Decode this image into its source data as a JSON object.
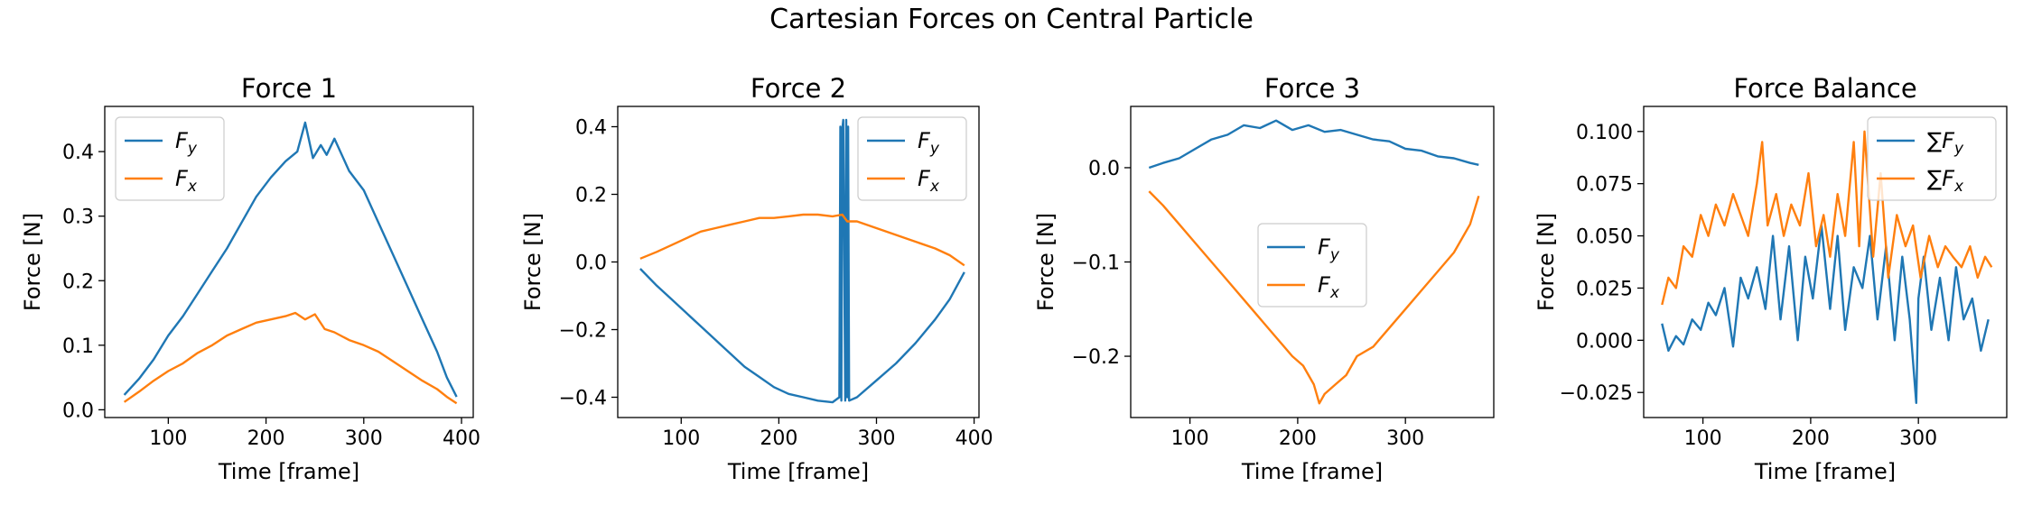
{
  "figure": {
    "suptitle": "Cartesian Forces on Central Particle"
  },
  "colors": {
    "fy": "#1f77b4",
    "fx": "#ff7f0e"
  },
  "chart_data": [
    {
      "type": "line",
      "title": "Force 1",
      "xlabel": "Time [frame]",
      "ylabel": "Force [N]",
      "xlim": [
        35,
        412
      ],
      "ylim": [
        -0.012,
        0.47
      ],
      "xticks": [
        100,
        200,
        300,
        400
      ],
      "yticks": [
        0.0,
        0.1,
        0.2,
        0.3,
        0.4
      ],
      "ytick_labels": [
        "0.0",
        "0.1",
        "0.2",
        "0.3",
        "0.4"
      ],
      "legend": {
        "position": "top-left"
      },
      "series": [
        {
          "name": "F_y",
          "label_main": "F",
          "label_sub": "y",
          "color": "#1f77b4",
          "x": [
            55,
            70,
            85,
            100,
            115,
            130,
            145,
            160,
            175,
            190,
            205,
            220,
            232,
            240,
            248,
            256,
            262,
            270,
            285,
            300,
            315,
            330,
            345,
            360,
            375,
            385,
            395
          ],
          "y": [
            0.023,
            0.048,
            0.078,
            0.115,
            0.145,
            0.18,
            0.215,
            0.25,
            0.29,
            0.33,
            0.36,
            0.385,
            0.4,
            0.445,
            0.39,
            0.41,
            0.395,
            0.42,
            0.37,
            0.34,
            0.29,
            0.24,
            0.19,
            0.14,
            0.09,
            0.05,
            0.02
          ]
        },
        {
          "name": "F_x",
          "label_main": "F",
          "label_sub": "x",
          "color": "#ff7f0e",
          "x": [
            55,
            70,
            85,
            100,
            115,
            130,
            145,
            160,
            175,
            190,
            205,
            220,
            230,
            240,
            250,
            260,
            270,
            285,
            300,
            315,
            330,
            345,
            360,
            375,
            385,
            395
          ],
          "y": [
            0.012,
            0.028,
            0.045,
            0.06,
            0.072,
            0.088,
            0.1,
            0.115,
            0.125,
            0.135,
            0.14,
            0.145,
            0.15,
            0.14,
            0.148,
            0.125,
            0.12,
            0.108,
            0.1,
            0.09,
            0.075,
            0.06,
            0.045,
            0.032,
            0.02,
            0.01
          ]
        }
      ]
    },
    {
      "type": "line",
      "title": "Force 2",
      "xlabel": "Time [frame]",
      "ylabel": "Force [N]",
      "xlim": [
        35,
        405
      ],
      "ylim": [
        -0.46,
        0.46
      ],
      "xticks": [
        100,
        200,
        300,
        400
      ],
      "yticks": [
        -0.4,
        -0.2,
        0.0,
        0.2,
        0.4
      ],
      "ytick_labels": [
        "−0.4",
        "−0.2",
        "0.0",
        "0.2",
        "0.4"
      ],
      "legend": {
        "position": "top-right"
      },
      "series": [
        {
          "name": "F_y",
          "label_main": "F",
          "label_sub": "y",
          "color": "#1f77b4",
          "x": [
            58,
            75,
            90,
            105,
            120,
            135,
            150,
            165,
            180,
            195,
            210,
            225,
            240,
            255,
            262,
            263,
            264,
            265,
            266,
            268,
            269,
            270,
            271,
            272,
            280,
            300,
            320,
            340,
            360,
            375,
            390
          ],
          "y": [
            -0.02,
            -0.07,
            -0.11,
            -0.15,
            -0.19,
            -0.23,
            -0.27,
            -0.31,
            -0.34,
            -0.37,
            -0.39,
            -0.4,
            -0.41,
            -0.415,
            -0.4,
            0.4,
            -0.41,
            0.39,
            0.42,
            -0.41,
            0.42,
            -0.4,
            0.4,
            -0.41,
            -0.4,
            -0.35,
            -0.3,
            -0.24,
            -0.17,
            -0.11,
            -0.03
          ]
        },
        {
          "name": "F_x",
          "label_main": "F",
          "label_sub": "x",
          "color": "#ff7f0e",
          "x": [
            58,
            75,
            90,
            105,
            120,
            135,
            150,
            165,
            180,
            195,
            210,
            225,
            240,
            255,
            265,
            270,
            280,
            300,
            320,
            340,
            360,
            375,
            390
          ],
          "y": [
            0.01,
            0.03,
            0.05,
            0.07,
            0.09,
            0.1,
            0.11,
            0.12,
            0.13,
            0.13,
            0.135,
            0.14,
            0.14,
            0.135,
            0.14,
            0.12,
            0.12,
            0.1,
            0.08,
            0.06,
            0.04,
            0.02,
            -0.01
          ]
        }
      ]
    },
    {
      "type": "line",
      "title": "Force 3",
      "xlabel": "Time [frame]",
      "ylabel": "Force [N]",
      "xlim": [
        45,
        382
      ],
      "ylim": [
        -0.265,
        0.065
      ],
      "xticks": [
        100,
        200,
        300
      ],
      "yticks": [
        -0.2,
        -0.1,
        0.0
      ],
      "ytick_labels": [
        "−0.2",
        "−0.1",
        "0.0"
      ],
      "legend": {
        "position": "center"
      },
      "series": [
        {
          "name": "F_y",
          "label_main": "F",
          "label_sub": "y",
          "color": "#1f77b4",
          "x": [
            62,
            75,
            90,
            105,
            120,
            135,
            150,
            165,
            180,
            195,
            210,
            225,
            240,
            255,
            270,
            285,
            300,
            315,
            330,
            345,
            360,
            368
          ],
          "y": [
            0.0,
            0.005,
            0.01,
            0.02,
            0.03,
            0.035,
            0.045,
            0.042,
            0.05,
            0.04,
            0.045,
            0.038,
            0.04,
            0.035,
            0.03,
            0.028,
            0.02,
            0.018,
            0.012,
            0.01,
            0.005,
            0.003
          ]
        },
        {
          "name": "F_x",
          "label_main": "F",
          "label_sub": "x",
          "color": "#ff7f0e",
          "x": [
            62,
            75,
            90,
            105,
            120,
            135,
            150,
            165,
            180,
            195,
            205,
            215,
            220,
            225,
            235,
            245,
            255,
            270,
            285,
            300,
            315,
            330,
            345,
            360,
            368
          ],
          "y": [
            -0.025,
            -0.04,
            -0.06,
            -0.08,
            -0.1,
            -0.12,
            -0.14,
            -0.16,
            -0.18,
            -0.2,
            -0.21,
            -0.23,
            -0.25,
            -0.24,
            -0.23,
            -0.22,
            -0.2,
            -0.19,
            -0.17,
            -0.15,
            -0.13,
            -0.11,
            -0.09,
            -0.06,
            -0.03
          ]
        }
      ]
    },
    {
      "type": "line",
      "title": "Force Balance",
      "xlabel": "Time [frame]",
      "ylabel": "Force [N]",
      "xlim": [
        45,
        382
      ],
      "ylim": [
        -0.037,
        0.112
      ],
      "xticks": [
        100,
        200,
        300
      ],
      "yticks": [
        -0.025,
        0.0,
        0.025,
        0.05,
        0.075,
        0.1
      ],
      "ytick_labels": [
        "−0.025",
        "0.000",
        "0.025",
        "0.050",
        "0.075",
        "0.100"
      ],
      "legend": {
        "position": "top-right"
      },
      "series": [
        {
          "name": "∑F_y",
          "label_main": "∑F",
          "label_sub": "y",
          "color": "#1f77b4",
          "x": [
            62,
            68,
            75,
            82,
            90,
            98,
            105,
            112,
            120,
            128,
            135,
            142,
            150,
            158,
            165,
            172,
            180,
            188,
            195,
            202,
            210,
            218,
            225,
            232,
            240,
            248,
            255,
            262,
            270,
            278,
            285,
            292,
            298,
            300,
            305,
            312,
            320,
            328,
            335,
            342,
            350,
            358,
            365
          ],
          "y": [
            0.008,
            -0.005,
            0.002,
            -0.002,
            0.01,
            0.005,
            0.018,
            0.012,
            0.025,
            -0.003,
            0.03,
            0.02,
            0.035,
            0.015,
            0.05,
            0.01,
            0.045,
            0.0,
            0.04,
            0.02,
            0.055,
            0.015,
            0.05,
            0.005,
            0.035,
            0.025,
            0.05,
            0.01,
            0.045,
            0.0,
            0.04,
            0.01,
            -0.03,
            0.02,
            0.04,
            0.005,
            0.03,
            0.0,
            0.035,
            0.01,
            0.02,
            -0.005,
            0.01
          ]
        },
        {
          "name": "∑F_x",
          "label_main": "∑F",
          "label_sub": "x",
          "color": "#ff7f0e",
          "x": [
            62,
            68,
            75,
            82,
            90,
            98,
            105,
            112,
            120,
            128,
            135,
            142,
            150,
            155,
            160,
            168,
            175,
            182,
            190,
            198,
            205,
            212,
            218,
            225,
            232,
            240,
            245,
            250,
            258,
            265,
            272,
            280,
            288,
            295,
            302,
            310,
            318,
            325,
            332,
            340,
            348,
            355,
            362,
            368
          ],
          "y": [
            0.017,
            0.03,
            0.025,
            0.045,
            0.04,
            0.06,
            0.05,
            0.065,
            0.055,
            0.07,
            0.06,
            0.05,
            0.075,
            0.095,
            0.055,
            0.07,
            0.05,
            0.065,
            0.055,
            0.08,
            0.045,
            0.06,
            0.04,
            0.07,
            0.05,
            0.095,
            0.045,
            0.1,
            0.04,
            0.08,
            0.03,
            0.06,
            0.045,
            0.055,
            0.03,
            0.05,
            0.035,
            0.045,
            0.04,
            0.035,
            0.045,
            0.03,
            0.04,
            0.035
          ]
        }
      ]
    }
  ]
}
